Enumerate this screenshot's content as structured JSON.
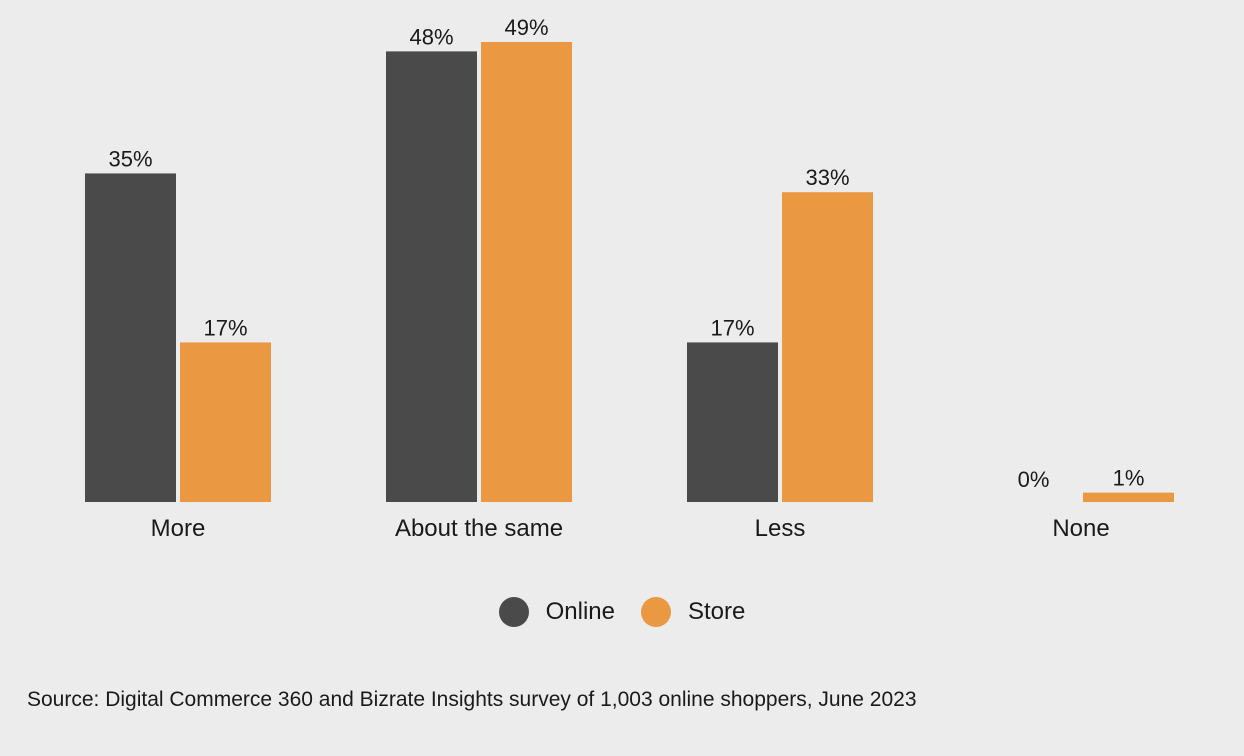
{
  "chart_data": {
    "type": "bar",
    "categories": [
      "More",
      "About the same",
      "Less",
      "None"
    ],
    "series": [
      {
        "name": "Online",
        "values": [
          35,
          48,
          17,
          0
        ],
        "color": "#4a4a4a"
      },
      {
        "name": "Store",
        "values": [
          17,
          49,
          33,
          1
        ],
        "color": "#ea9841"
      }
    ],
    "ylim": [
      0,
      49
    ],
    "value_suffix": "%",
    "legend_placement": "bottom-center",
    "grid": false
  },
  "source": "Source: Digital Commerce 360 and Bizrate Insights survey of 1,003 online shoppers, June 2023"
}
